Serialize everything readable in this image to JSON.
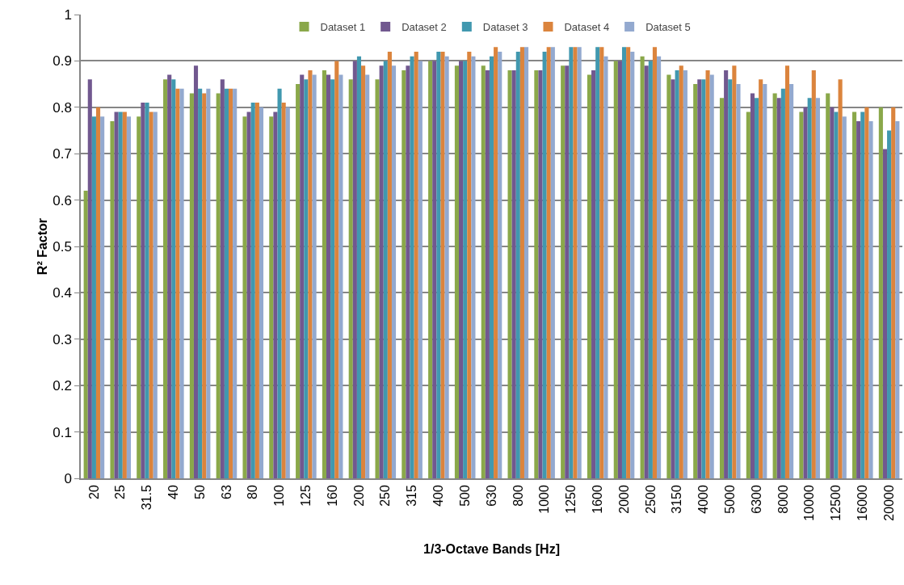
{
  "chart_data": {
    "type": "bar",
    "xlabel": "1/3-Octave Bands [Hz]",
    "ylabel": "R² Factor",
    "categories": [
      "20",
      "25",
      "31.5",
      "40",
      "50",
      "63",
      "80",
      "100",
      "125",
      "160",
      "200",
      "250",
      "315",
      "400",
      "500",
      "630",
      "800",
      "1000",
      "1250",
      "1600",
      "2000",
      "2500",
      "3150",
      "4000",
      "5000",
      "6300",
      "8000",
      "10000",
      "12500",
      "16000",
      "20000"
    ],
    "series": [
      {
        "name": "Dataset 1",
        "color": "#8aa84a",
        "values": [
          0.62,
          0.77,
          0.78,
          0.86,
          0.83,
          0.83,
          0.78,
          0.78,
          0.85,
          0.88,
          0.86,
          0.86,
          0.88,
          0.9,
          0.89,
          0.89,
          0.88,
          0.88,
          0.89,
          0.87,
          0.9,
          0.91,
          0.87,
          0.85,
          0.82,
          0.79,
          0.83,
          0.79,
          0.83,
          0.79,
          0.8
        ]
      },
      {
        "name": "Dataset 2",
        "color": "#71588f",
        "values": [
          0.86,
          0.79,
          0.81,
          0.87,
          0.89,
          0.86,
          0.79,
          0.79,
          0.87,
          0.87,
          0.9,
          0.89,
          0.89,
          0.9,
          0.9,
          0.88,
          0.88,
          0.88,
          0.89,
          0.88,
          0.9,
          0.89,
          0.86,
          0.86,
          0.88,
          0.83,
          0.82,
          0.8,
          0.8,
          0.77,
          0.71
        ]
      },
      {
        "name": "Dataset 3",
        "color": "#4198af",
        "values": [
          0.78,
          0.79,
          0.81,
          0.86,
          0.84,
          0.84,
          0.81,
          0.84,
          0.86,
          0.86,
          0.91,
          0.9,
          0.91,
          0.92,
          0.9,
          0.91,
          0.92,
          0.92,
          0.93,
          0.93,
          0.93,
          0.9,
          0.88,
          0.86,
          0.86,
          0.82,
          0.84,
          0.82,
          0.79,
          0.79,
          0.75
        ]
      },
      {
        "name": "Dataset 4",
        "color": "#db843d",
        "values": [
          0.8,
          0.79,
          0.79,
          0.84,
          0.83,
          0.84,
          0.81,
          0.81,
          0.88,
          0.9,
          0.89,
          0.92,
          0.92,
          0.92,
          0.92,
          0.93,
          0.93,
          0.93,
          0.93,
          0.93,
          0.93,
          0.93,
          0.89,
          0.88,
          0.89,
          0.86,
          0.89,
          0.88,
          0.86,
          0.8,
          0.8
        ]
      },
      {
        "name": "Dataset 5",
        "color": "#93a9cf",
        "values": [
          0.78,
          0.78,
          0.79,
          0.84,
          0.84,
          0.84,
          0.8,
          0.8,
          0.87,
          0.87,
          0.87,
          0.89,
          0.9,
          0.91,
          0.91,
          0.92,
          0.93,
          0.93,
          0.93,
          0.91,
          0.92,
          0.91,
          0.88,
          0.87,
          0.85,
          0.85,
          0.85,
          0.82,
          0.78,
          0.77,
          0.77
        ]
      }
    ],
    "ylim": [
      0,
      1
    ],
    "yticks": [
      0,
      0.1,
      0.2,
      0.3,
      0.4,
      0.5,
      0.6,
      0.7,
      0.8,
      0.9,
      1
    ],
    "grid": "y",
    "legend": "top"
  }
}
